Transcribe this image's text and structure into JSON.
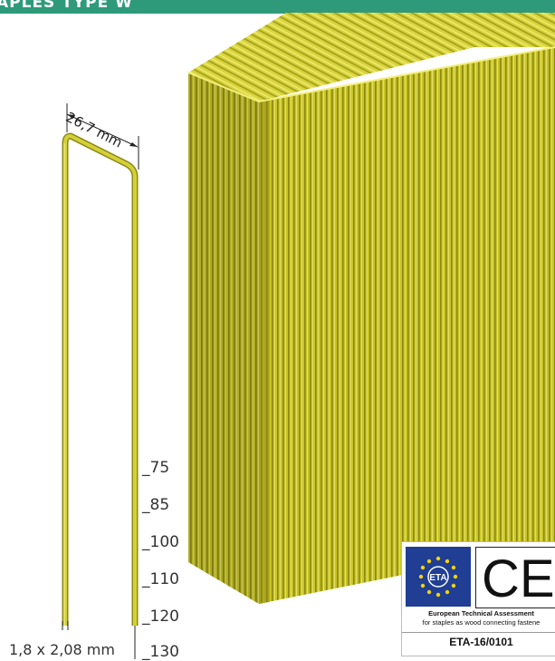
{
  "header": {
    "title": "APLES TYPE W"
  },
  "crown_dimension": "26,7 mm",
  "lengths": [
    "75",
    "85",
    "100",
    "110",
    "120",
    "130"
  ],
  "wire_dimension": "1,8 x 2,08 mm",
  "certification": {
    "eta_logo_text": "ETA",
    "ce_mark": "CE",
    "line1": "European Technical Assessment",
    "line2": "for staples as wood connecting fastene",
    "code": "ETA-16/0101"
  },
  "colors": {
    "header": "#2e9a7a",
    "staple": "#c8c428",
    "staple_dark": "#9a961a",
    "eu_blue": "#1f3e94",
    "eu_star": "#f5d400"
  }
}
